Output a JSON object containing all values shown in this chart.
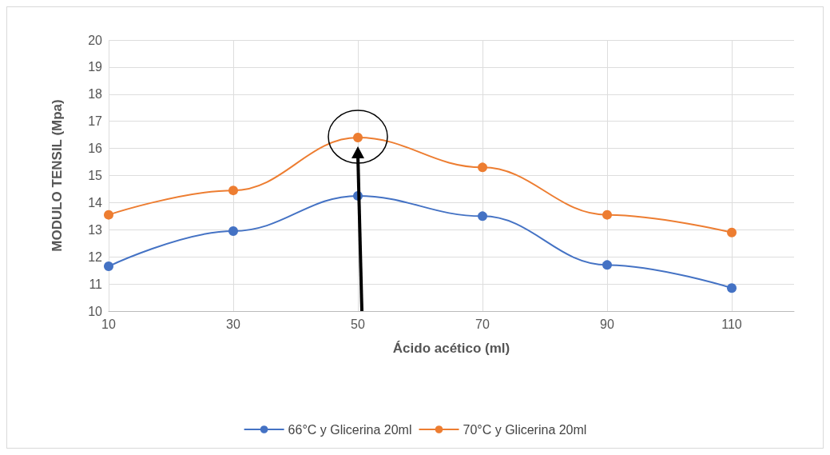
{
  "chart_data": {
    "type": "line",
    "xlabel": "Ácido acético (ml)",
    "ylabel": "MODULO TENSIL (Mpa)",
    "x": [
      10,
      30,
      50,
      70,
      90,
      110
    ],
    "series": [
      {
        "name": "66°C y Glicerina 20ml",
        "color": "#4472c4",
        "values": [
          11.65,
          12.95,
          14.25,
          13.5,
          11.7,
          10.85
        ]
      },
      {
        "name": "70°C y Glicerina 20ml",
        "color": "#ed7d31",
        "values": [
          13.55,
          14.45,
          16.4,
          15.3,
          13.55,
          12.9
        ]
      }
    ],
    "xlim": [
      10,
      120
    ],
    "xticks": [
      10,
      30,
      50,
      70,
      90,
      110
    ],
    "ylim": [
      10,
      20
    ],
    "yticks": [
      10,
      11,
      12,
      13,
      14,
      15,
      16,
      17,
      18,
      19,
      20
    ],
    "grid": true,
    "legend": "bottom",
    "marker": "circle"
  }
}
